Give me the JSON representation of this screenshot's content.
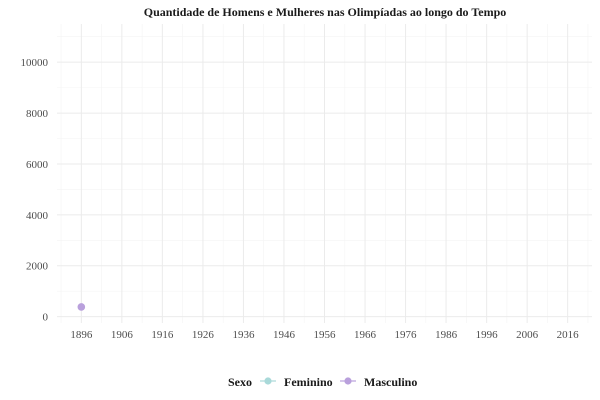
{
  "chart_data": {
    "type": "scatter",
    "title": "Quantidade de Homens e Mulheres nas Olimpíadas ao longo do Tempo",
    "xlabel": "",
    "ylabel": "",
    "xlim": [
      1890,
      2022
    ],
    "ylim": [
      -250,
      11500
    ],
    "x_ticks": [
      1896,
      1906,
      1916,
      1926,
      1936,
      1946,
      1956,
      1966,
      1976,
      1986,
      1996,
      2006,
      2016
    ],
    "y_ticks": [
      0,
      2000,
      4000,
      6000,
      8000,
      10000
    ],
    "grid": true,
    "legend": {
      "title": "Sexo",
      "placement": "bottom",
      "entries": [
        "Feminino",
        "Masculino"
      ]
    },
    "series": [
      {
        "name": "Feminino",
        "color": "#a9d9d9",
        "points": []
      },
      {
        "name": "Masculino",
        "color": "#b9a0dc",
        "points": [
          {
            "x": 1896,
            "y": 380
          }
        ]
      }
    ]
  }
}
